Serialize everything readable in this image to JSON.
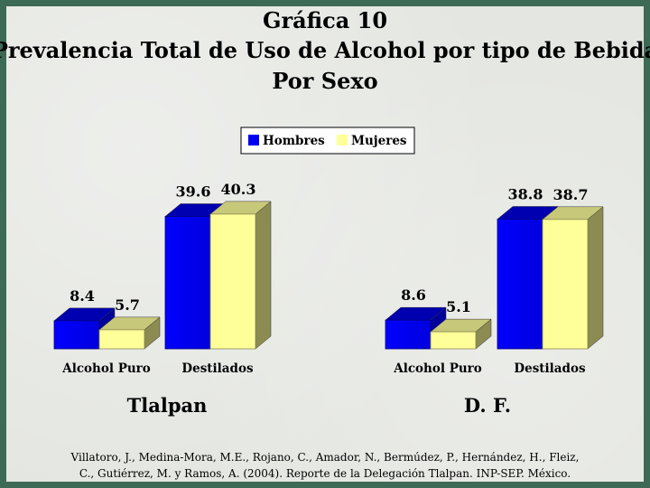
{
  "page": {
    "title_line1": "Gráfica 10",
    "title_line2": "Prevalencia Total de Uso de Alcohol por tipo de Bebida",
    "title_line3": "Por Sexo",
    "citation_line1": "Villatoro, J., Medina-Mora, M.E., Rojano, C., Amador, N., Bermúdez, P., Hernández, H., Fleiz,",
    "citation_line2": "C., Gutiérrez, M. y Ramos, A. (2004). Reporte de la Delegación Tlalpan. INP-SEP. México.",
    "colors": {
      "hombres": "#0000ee",
      "mujeres": "#ffff99",
      "frame": "#3d6a55"
    }
  },
  "chart_data": {
    "type": "bar",
    "legend": {
      "placement": "top-center",
      "entries": [
        "Hombres",
        "Mujeres"
      ]
    },
    "panels": [
      {
        "group_label": "Tlalpan",
        "categories": [
          "Alcohol Puro",
          "Destilados"
        ],
        "series": [
          {
            "name": "Hombres",
            "values": [
              8.4,
              39.6
            ],
            "labels": [
              "8.4",
              "39.6"
            ]
          },
          {
            "name": "Mujeres",
            "values": [
              5.7,
              40.3
            ],
            "labels": [
              "5.7",
              "40.3"
            ]
          }
        ]
      },
      {
        "group_label": "D. F.",
        "categories": [
          "Alcohol Puro",
          "Destilados"
        ],
        "series": [
          {
            "name": "Hombres",
            "values": [
              8.6,
              38.8
            ],
            "labels": [
              "8.6",
              "38.8"
            ]
          },
          {
            "name": "Mujeres",
            "values": [
              5.1,
              38.7
            ],
            "labels": [
              "5.1",
              "38.7"
            ]
          }
        ]
      }
    ]
  }
}
